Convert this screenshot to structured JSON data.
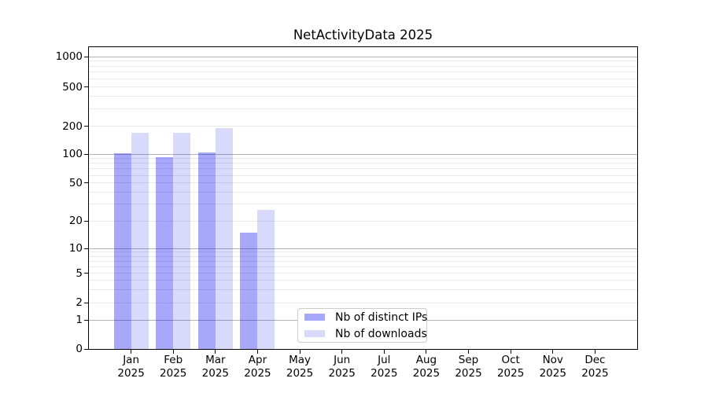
{
  "title": "NetActivityData 2025",
  "legend": {
    "items": [
      {
        "label": "Nb of distinct IPs",
        "color_key": "ips"
      },
      {
        "label": "Nb of downloads",
        "color_key": "downloads"
      }
    ]
  },
  "colors": {
    "ips": "rgba(0,0,240,0.34)",
    "downloads": "rgba(0,0,230,0.15)",
    "major_grid": "#b3b3b3",
    "minor_grid": "#e9e9e9",
    "spine": "#000000",
    "text": "#000000",
    "legend_border": "#cccccc"
  },
  "chart_data": {
    "type": "bar",
    "title": "NetActivityData 2025",
    "categories": [
      "Jan 2025",
      "Feb 2025",
      "Mar 2025",
      "Apr 2025",
      "May 2025",
      "Jun 2025",
      "Jul 2025",
      "Aug 2025",
      "Sep 2025",
      "Oct 2025",
      "Nov 2025",
      "Dec 2025"
    ],
    "series": [
      {
        "name": "Nb of distinct IPs",
        "values": [
          103,
          92,
          104,
          15,
          null,
          null,
          null,
          null,
          null,
          null,
          null,
          null
        ]
      },
      {
        "name": "Nb of downloads",
        "values": [
          170,
          170,
          190,
          26,
          null,
          null,
          null,
          null,
          null,
          null,
          null,
          null
        ]
      }
    ],
    "xlabel": "",
    "ylabel": "",
    "yscale": "symlog",
    "y_ticks": [
      0,
      1,
      2,
      5,
      10,
      20,
      50,
      100,
      200,
      500,
      1000
    ],
    "ylim": [
      0,
      1300
    ],
    "grid": "horizontal; light minor lines each log step, darker lines at 1/10/100/1000",
    "legend_position": "inside, lower-center-left"
  }
}
